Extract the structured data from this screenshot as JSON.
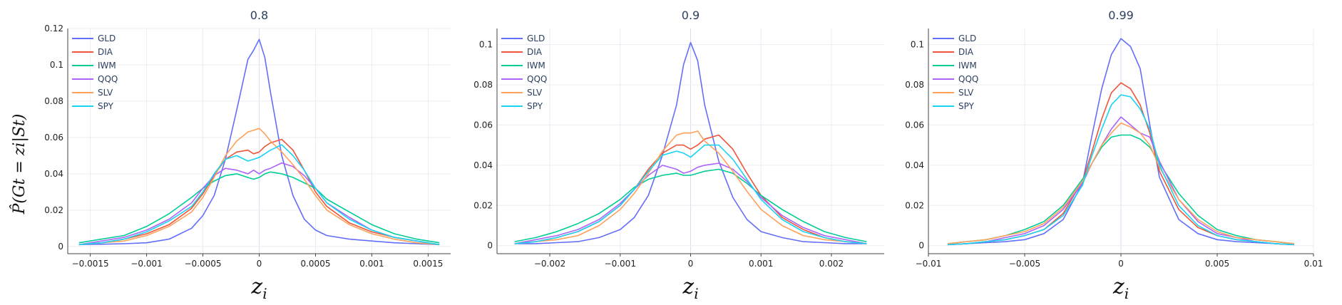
{
  "ylabel": "P̂(Gt = zi|St)",
  "xlabel": "zi",
  "chart_data": [
    {
      "type": "line",
      "title": "0.8",
      "xlim": [
        -0.0017,
        0.0017
      ],
      "ylim": [
        -0.004,
        0.12
      ],
      "x_ticks": [
        -0.0015,
        -0.001,
        -0.0005,
        0,
        0.0005,
        0.001,
        0.0015
      ],
      "x_tick_labels": [
        "−0.0015",
        "−0.001",
        "−0.0005",
        "0",
        "0.0005",
        "0.001",
        "0.0015"
      ],
      "y_ticks": [
        0,
        0.02,
        0.04,
        0.06,
        0.08,
        0.1,
        0.12
      ],
      "y_tick_labels": [
        "0",
        "0.02",
        "0.04",
        "0.06",
        "0.08",
        "0.1",
        "0.12"
      ],
      "legend": "top-left",
      "x": [
        -0.0016,
        -0.0014,
        -0.0012,
        -0.001,
        -0.0008,
        -0.0006,
        -0.0005,
        -0.0004,
        -0.0003,
        -0.0002,
        -0.0001,
        -5e-05,
        0,
        5e-05,
        0.0001,
        0.0002,
        0.0003,
        0.0004,
        0.0005,
        0.0006,
        0.0008,
        0.001,
        0.0012,
        0.0014,
        0.0016
      ],
      "series": [
        {
          "name": "GLD",
          "color": "#636efa",
          "values": [
            0.001,
            0.0012,
            0.0015,
            0.002,
            0.004,
            0.01,
            0.017,
            0.028,
            0.048,
            0.075,
            0.103,
            0.108,
            0.114,
            0.104,
            0.085,
            0.05,
            0.028,
            0.015,
            0.009,
            0.006,
            0.004,
            0.003,
            0.002,
            0.0015,
            0.001
          ]
        },
        {
          "name": "DIA",
          "color": "#ef553b",
          "values": [
            0.001,
            0.002,
            0.004,
            0.007,
            0.012,
            0.021,
            0.029,
            0.039,
            0.048,
            0.052,
            0.053,
            0.051,
            0.052,
            0.055,
            0.057,
            0.059,
            0.053,
            0.042,
            0.03,
            0.022,
            0.013,
            0.008,
            0.005,
            0.003,
            0.001
          ]
        },
        {
          "name": "IWM",
          "color": "#00cc96",
          "values": [
            0.002,
            0.004,
            0.006,
            0.011,
            0.018,
            0.027,
            0.032,
            0.036,
            0.039,
            0.04,
            0.038,
            0.037,
            0.038,
            0.04,
            0.041,
            0.04,
            0.038,
            0.035,
            0.032,
            0.026,
            0.019,
            0.012,
            0.007,
            0.004,
            0.002
          ]
        },
        {
          "name": "QQQ",
          "color": "#ab63fa",
          "values": [
            0.001,
            0.003,
            0.005,
            0.009,
            0.015,
            0.024,
            0.032,
            0.039,
            0.043,
            0.042,
            0.04,
            0.042,
            0.04,
            0.042,
            0.043,
            0.046,
            0.044,
            0.039,
            0.032,
            0.024,
            0.016,
            0.009,
            0.005,
            0.003,
            0.001
          ]
        },
        {
          "name": "SLV",
          "color": "#ffa15a",
          "values": [
            0.001,
            0.002,
            0.003,
            0.006,
            0.011,
            0.019,
            0.027,
            0.038,
            0.05,
            0.058,
            0.063,
            0.064,
            0.065,
            0.062,
            0.058,
            0.052,
            0.045,
            0.037,
            0.028,
            0.02,
            0.012,
            0.007,
            0.004,
            0.002,
            0.001
          ]
        },
        {
          "name": "SPY",
          "color": "#19d3f3",
          "values": [
            0.001,
            0.002,
            0.004,
            0.008,
            0.014,
            0.022,
            0.03,
            0.04,
            0.048,
            0.05,
            0.047,
            0.048,
            0.049,
            0.051,
            0.053,
            0.056,
            0.05,
            0.042,
            0.032,
            0.024,
            0.015,
            0.009,
            0.005,
            0.003,
            0.001
          ]
        }
      ]
    },
    {
      "type": "line",
      "title": "0.9",
      "xlim": [
        -0.00275,
        0.00275
      ],
      "ylim": [
        -0.004,
        0.108
      ],
      "x_ticks": [
        -0.002,
        -0.001,
        0,
        0.001,
        0.002
      ],
      "x_tick_labels": [
        "−0.002",
        "−0.001",
        "0",
        "0.001",
        "0.002"
      ],
      "y_ticks": [
        0,
        0.02,
        0.04,
        0.06,
        0.08,
        0.1
      ],
      "y_tick_labels": [
        "0",
        "0.02",
        "0.04",
        "0.06",
        "0.08",
        "0.1"
      ],
      "legend": "top-left",
      "x": [
        -0.0025,
        -0.0022,
        -0.0019,
        -0.0016,
        -0.0013,
        -0.001,
        -0.0008,
        -0.0006,
        -0.0004,
        -0.0002,
        -0.0001,
        0,
        0.0001,
        0.0002,
        0.0004,
        0.0006,
        0.0008,
        0.001,
        0.0013,
        0.0016,
        0.0019,
        0.0022,
        0.0025
      ],
      "series": [
        {
          "name": "GLD",
          "color": "#636efa",
          "values": [
            0.001,
            0.001,
            0.0015,
            0.002,
            0.004,
            0.008,
            0.014,
            0.025,
            0.045,
            0.07,
            0.09,
            0.101,
            0.092,
            0.07,
            0.042,
            0.024,
            0.013,
            0.007,
            0.004,
            0.002,
            0.0015,
            0.001,
            0.001
          ]
        },
        {
          "name": "DIA",
          "color": "#ef553b",
          "values": [
            0.001,
            0.002,
            0.004,
            0.007,
            0.012,
            0.02,
            0.028,
            0.038,
            0.046,
            0.05,
            0.05,
            0.048,
            0.05,
            0.053,
            0.055,
            0.048,
            0.036,
            0.025,
            0.014,
            0.008,
            0.004,
            0.002,
            0.001
          ]
        },
        {
          "name": "IWM",
          "color": "#00cc96",
          "values": [
            0.002,
            0.004,
            0.007,
            0.011,
            0.016,
            0.023,
            0.029,
            0.033,
            0.035,
            0.036,
            0.035,
            0.035,
            0.036,
            0.037,
            0.038,
            0.036,
            0.031,
            0.025,
            0.018,
            0.012,
            0.007,
            0.004,
            0.002
          ]
        },
        {
          "name": "QQQ",
          "color": "#ab63fa",
          "values": [
            0.001,
            0.003,
            0.005,
            0.008,
            0.013,
            0.021,
            0.028,
            0.035,
            0.04,
            0.038,
            0.036,
            0.037,
            0.039,
            0.04,
            0.041,
            0.038,
            0.032,
            0.024,
            0.015,
            0.009,
            0.005,
            0.003,
            0.001
          ]
        },
        {
          "name": "SLV",
          "color": "#ffa15a",
          "values": [
            0.001,
            0.002,
            0.003,
            0.005,
            0.01,
            0.018,
            0.026,
            0.036,
            0.047,
            0.055,
            0.056,
            0.056,
            0.057,
            0.052,
            0.046,
            0.037,
            0.027,
            0.018,
            0.01,
            0.005,
            0.003,
            0.002,
            0.001
          ]
        },
        {
          "name": "SPY",
          "color": "#19d3f3",
          "values": [
            0.001,
            0.002,
            0.004,
            0.007,
            0.012,
            0.02,
            0.028,
            0.037,
            0.045,
            0.047,
            0.046,
            0.044,
            0.047,
            0.05,
            0.05,
            0.043,
            0.033,
            0.023,
            0.013,
            0.007,
            0.004,
            0.002,
            0.001
          ]
        }
      ]
    },
    {
      "type": "line",
      "title": "0.99",
      "xlim": [
        -0.01,
        0.01
      ],
      "ylim": [
        -0.004,
        0.108
      ],
      "x_ticks": [
        -0.01,
        -0.005,
        0,
        0.005,
        0.01
      ],
      "x_tick_labels": [
        "−0.01",
        "−0.005",
        "0",
        "0.005",
        "0.01"
      ],
      "y_ticks": [
        0,
        0.02,
        0.04,
        0.06,
        0.08,
        0.1
      ],
      "y_tick_labels": [
        "0",
        "0.02",
        "0.04",
        "0.06",
        "0.08",
        "0.1"
      ],
      "legend": "top-left",
      "x": [
        -0.009,
        -0.008,
        -0.007,
        -0.006,
        -0.005,
        -0.004,
        -0.003,
        -0.002,
        -0.0015,
        -0.001,
        -0.0005,
        0,
        0.0005,
        0.001,
        0.0015,
        0.002,
        0.003,
        0.004,
        0.005,
        0.006,
        0.007,
        0.008,
        0.009
      ],
      "series": [
        {
          "name": "GLD",
          "color": "#636efa",
          "values": [
            0.0005,
            0.001,
            0.0015,
            0.002,
            0.003,
            0.006,
            0.013,
            0.031,
            0.055,
            0.078,
            0.095,
            0.103,
            0.099,
            0.088,
            0.06,
            0.034,
            0.013,
            0.006,
            0.003,
            0.002,
            0.0015,
            0.001,
            0.0005
          ]
        },
        {
          "name": "DIA",
          "color": "#ef553b",
          "values": [
            0.0005,
            0.001,
            0.002,
            0.003,
            0.005,
            0.008,
            0.016,
            0.032,
            0.047,
            0.063,
            0.076,
            0.081,
            0.078,
            0.07,
            0.056,
            0.037,
            0.018,
            0.009,
            0.005,
            0.003,
            0.002,
            0.001,
            0.0005
          ]
        },
        {
          "name": "IWM",
          "color": "#00cc96",
          "values": [
            0.001,
            0.002,
            0.003,
            0.005,
            0.008,
            0.012,
            0.02,
            0.033,
            0.041,
            0.049,
            0.054,
            0.055,
            0.055,
            0.053,
            0.049,
            0.041,
            0.026,
            0.015,
            0.008,
            0.005,
            0.003,
            0.002,
            0.001
          ]
        },
        {
          "name": "QQQ",
          "color": "#ab63fa",
          "values": [
            0.0005,
            0.001,
            0.002,
            0.004,
            0.006,
            0.01,
            0.018,
            0.031,
            0.041,
            0.05,
            0.058,
            0.064,
            0.06,
            0.056,
            0.054,
            0.042,
            0.023,
            0.012,
            0.006,
            0.004,
            0.002,
            0.001,
            0.0005
          ]
        },
        {
          "name": "SLV",
          "color": "#ffa15a",
          "values": [
            0.001,
            0.002,
            0.003,
            0.005,
            0.007,
            0.011,
            0.019,
            0.032,
            0.041,
            0.05,
            0.056,
            0.061,
            0.059,
            0.056,
            0.05,
            0.039,
            0.023,
            0.013,
            0.007,
            0.004,
            0.003,
            0.002,
            0.001
          ]
        },
        {
          "name": "SPY",
          "color": "#19d3f3",
          "values": [
            0.0005,
            0.001,
            0.002,
            0.003,
            0.005,
            0.008,
            0.015,
            0.03,
            0.045,
            0.058,
            0.07,
            0.075,
            0.074,
            0.068,
            0.058,
            0.04,
            0.02,
            0.01,
            0.005,
            0.003,
            0.002,
            0.001,
            0.0005
          ]
        }
      ]
    }
  ]
}
